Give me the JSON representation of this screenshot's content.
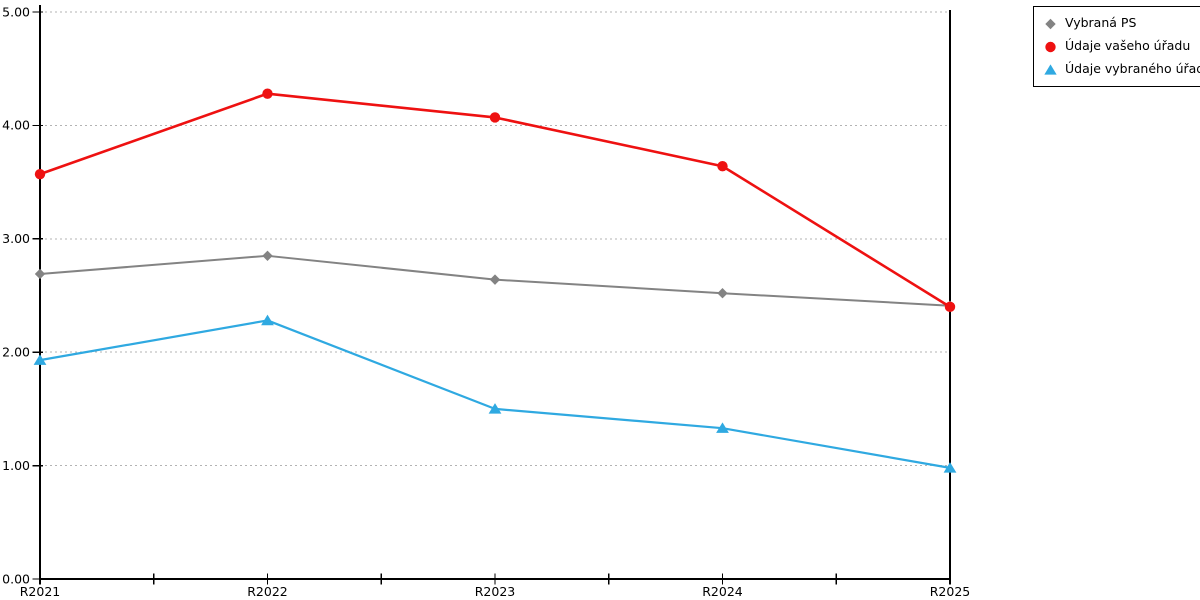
{
  "chart_data": {
    "type": "line",
    "title": "",
    "xlabel": "",
    "ylabel": "",
    "categories": [
      "R2021",
      "R2022",
      "R2023",
      "R2024",
      "R2025"
    ],
    "series": [
      {
        "name": "Vybraná PS",
        "color": "#838383",
        "marker": "diamond",
        "values": [
          2.69,
          2.85,
          2.64,
          2.52,
          2.41
        ]
      },
      {
        "name": "Údaje vašeho úřadu",
        "color": "#ee1111",
        "marker": "circle",
        "values": [
          3.57,
          4.28,
          4.07,
          3.64,
          2.4
        ]
      },
      {
        "name": "Údaje vybraného úřadu",
        "color": "#2fa9e1",
        "marker": "triangle",
        "values": [
          1.93,
          2.28,
          1.5,
          1.33,
          0.98
        ]
      }
    ],
    "ylim": [
      0,
      5
    ],
    "y_tick_step": 1,
    "y_tick_labels": [
      "0.00",
      "1.00",
      "2.00",
      "3.00",
      "4.00",
      "5.00"
    ],
    "x_minor_ticks": "midpoints-between-categories",
    "grid": "horizontal-dashed",
    "grid_color": "#b3b3b3",
    "axis_color": "#000000",
    "legend_position": "outside-top-right"
  }
}
